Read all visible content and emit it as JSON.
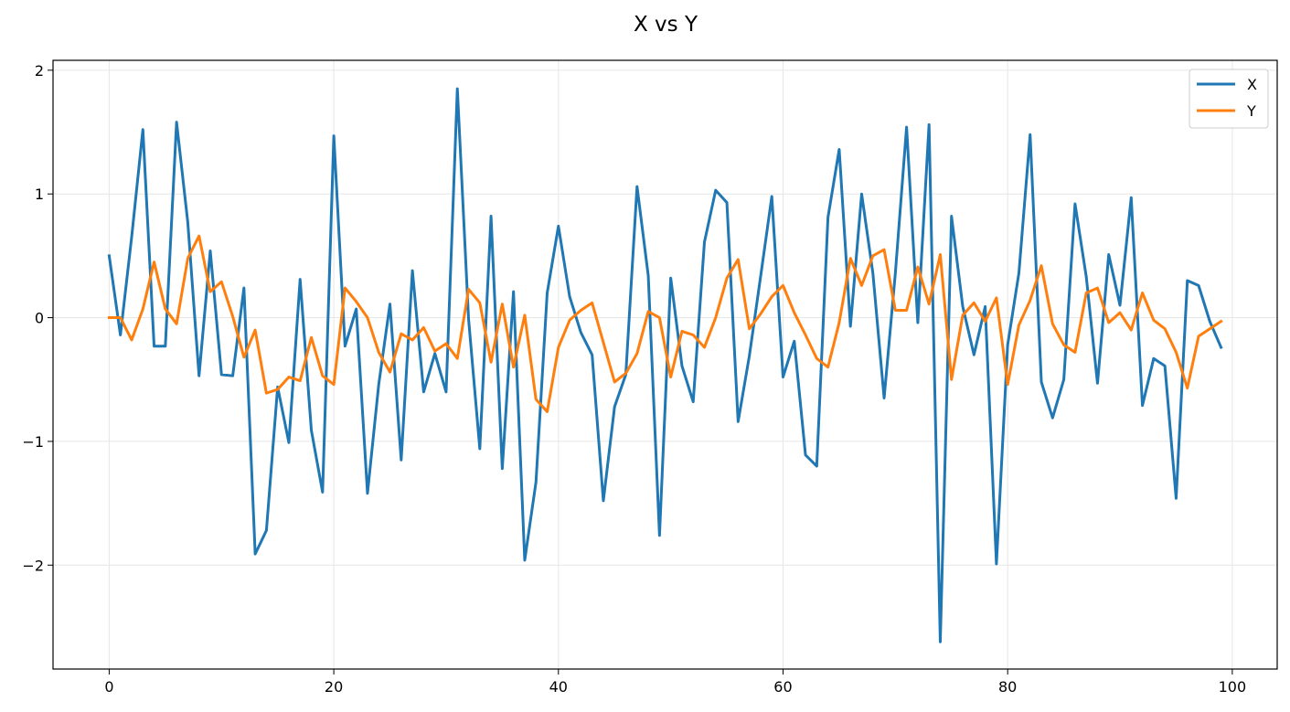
{
  "chart_data": {
    "type": "line",
    "title": "X vs Y",
    "xlabel": "",
    "ylabel": "",
    "xlim": [
      -5,
      104
    ],
    "ylim": [
      -2.84,
      2.08
    ],
    "xticks": [
      0,
      20,
      40,
      60,
      80,
      100
    ],
    "yticks": [
      -2,
      -1,
      0,
      1,
      2
    ],
    "grid": true,
    "legend_position": "top-right",
    "x": [
      0,
      1,
      2,
      3,
      4,
      5,
      6,
      7,
      8,
      9,
      10,
      11,
      12,
      13,
      14,
      15,
      16,
      17,
      18,
      19,
      20,
      21,
      22,
      23,
      24,
      25,
      26,
      27,
      28,
      29,
      30,
      31,
      32,
      33,
      34,
      35,
      36,
      37,
      38,
      39,
      40,
      41,
      42,
      43,
      44,
      45,
      46,
      47,
      48,
      49,
      50,
      51,
      52,
      53,
      54,
      55,
      56,
      57,
      58,
      59,
      60,
      61,
      62,
      63,
      64,
      65,
      66,
      67,
      68,
      69,
      70,
      71,
      72,
      73,
      74,
      75,
      76,
      77,
      78,
      79,
      80,
      81,
      82,
      83,
      84,
      85,
      86,
      87,
      88,
      89,
      90,
      91,
      92,
      93,
      94,
      95,
      96,
      97,
      98,
      99
    ],
    "series": [
      {
        "name": "X",
        "color": "#1f77b4",
        "values": [
          0.5,
          -0.14,
          0.65,
          1.52,
          -0.23,
          -0.23,
          1.58,
          0.77,
          -0.47,
          0.54,
          -0.46,
          -0.47,
          0.24,
          -1.91,
          -1.72,
          -0.56,
          -1.01,
          0.31,
          -0.91,
          -1.41,
          1.47,
          -0.23,
          0.07,
          -1.42,
          -0.54,
          0.11,
          -1.15,
          0.38,
          -0.6,
          -0.29,
          -0.6,
          1.85,
          -0.01,
          -1.06,
          0.82,
          -1.22,
          0.21,
          -1.96,
          -1.33,
          0.2,
          0.74,
          0.17,
          -0.12,
          -0.3,
          -1.48,
          -0.72,
          -0.46,
          1.06,
          0.34,
          -1.76,
          0.32,
          -0.39,
          -0.68,
          0.61,
          1.03,
          0.93,
          -0.84,
          -0.31,
          0.33,
          0.98,
          -0.48,
          -0.19,
          -1.11,
          -1.2,
          0.81,
          1.36,
          -0.07,
          1.0,
          0.36,
          -0.65,
          0.36,
          1.54,
          -0.04,
          1.56,
          -2.62,
          0.82,
          0.09,
          -0.3,
          0.09,
          -1.99,
          -0.22,
          0.36,
          1.48,
          -0.52,
          -0.81,
          -0.5,
          0.92,
          0.33,
          -0.53,
          0.51,
          0.1,
          0.97,
          -0.71,
          -0.33,
          -0.39,
          -1.46,
          0.3,
          0.26,
          -0.03,
          -0.24
        ]
      },
      {
        "name": "Y",
        "color": "#ff7f0e",
        "values": [
          0.0,
          0.0,
          -0.18,
          0.07,
          0.45,
          0.07,
          -0.05,
          0.48,
          0.66,
          0.21,
          0.29,
          0.01,
          -0.32,
          -0.1,
          -0.61,
          -0.58,
          -0.48,
          -0.51,
          -0.16,
          -0.47,
          -0.54,
          0.24,
          0.13,
          0.0,
          -0.28,
          -0.44,
          -0.13,
          -0.18,
          -0.08,
          -0.27,
          -0.21,
          -0.33,
          0.23,
          0.12,
          -0.36,
          0.11,
          -0.4,
          0.02,
          -0.66,
          -0.76,
          -0.24,
          -0.02,
          0.06,
          0.12,
          -0.2,
          -0.52,
          -0.45,
          -0.29,
          0.05,
          0.0,
          -0.48,
          -0.11,
          -0.14,
          -0.24,
          0.0,
          0.32,
          0.47,
          -0.09,
          0.03,
          0.17,
          0.26,
          0.04,
          -0.14,
          -0.33,
          -0.4,
          -0.04,
          0.48,
          0.26,
          0.5,
          0.55,
          0.06,
          0.06,
          0.41,
          0.11,
          0.51,
          -0.5,
          0.02,
          0.12,
          -0.03,
          0.16,
          -0.54,
          -0.06,
          0.14,
          0.42,
          -0.05,
          -0.22,
          -0.28,
          0.2,
          0.24,
          -0.04,
          0.04,
          -0.1,
          0.2,
          -0.02,
          -0.09,
          -0.28,
          -0.57,
          -0.15,
          -0.09,
          -0.03
        ]
      }
    ]
  }
}
